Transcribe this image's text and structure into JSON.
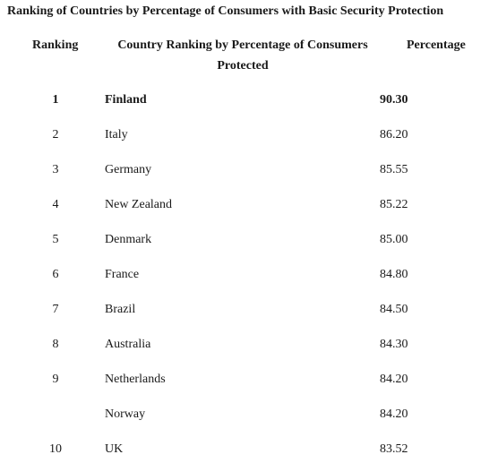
{
  "title": "Ranking of Countries by Percentage of Consumers with Basic Security Protection",
  "headers": {
    "rank": "Ranking",
    "country": "Country Ranking by Percentage of Consumers Protected",
    "percentage": "Percentage"
  },
  "rows": [
    {
      "rank": "1",
      "country": "Finland",
      "percentage": "90.30"
    },
    {
      "rank": "2",
      "country": "Italy",
      "percentage": "86.20"
    },
    {
      "rank": "3",
      "country": "Germany",
      "percentage": "85.55"
    },
    {
      "rank": "4",
      "country": "New Zealand",
      "percentage": "85.22"
    },
    {
      "rank": "5",
      "country": "Denmark",
      "percentage": "85.00"
    },
    {
      "rank": "6",
      "country": "France",
      "percentage": "84.80"
    },
    {
      "rank": "7",
      "country": "Brazil",
      "percentage": "84.50"
    },
    {
      "rank": "8",
      "country": "Australia",
      "percentage": "84.30"
    },
    {
      "rank": "9",
      "country": "Netherlands",
      "percentage": "84.20"
    },
    {
      "rank": "",
      "country": "Norway",
      "percentage": "84.20"
    },
    {
      "rank": "10",
      "country": "UK",
      "percentage": "83.52"
    }
  ]
}
